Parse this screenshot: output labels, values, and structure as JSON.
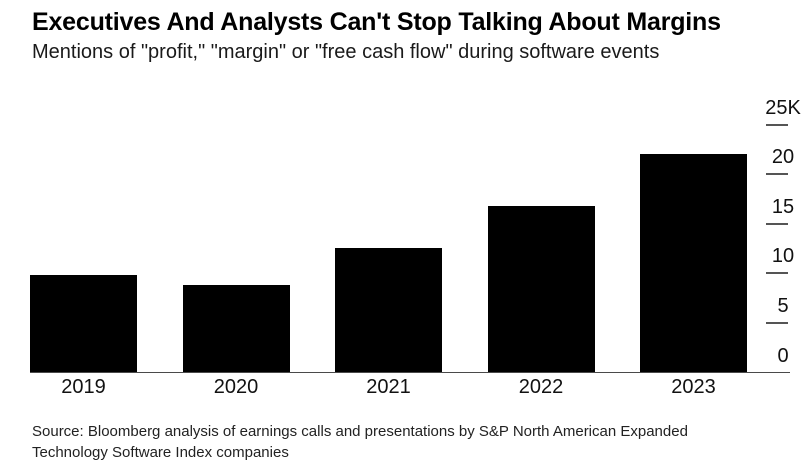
{
  "header": {
    "title": "Executives And Analysts Can't Stop Talking About Margins",
    "subtitle": "Mentions of \"profit,\" \"margin\" or \"free cash flow\" during software events"
  },
  "chart_data": {
    "type": "bar",
    "title": "Executives And Analysts Can't Stop Talking About Margins",
    "subtitle": "Mentions of \"profit,\" \"margin\" or \"free cash flow\" during software events",
    "categories": [
      "2019",
      "2020",
      "2021",
      "2022",
      "2023"
    ],
    "values": [
      9800,
      8800,
      12600,
      16800,
      22000
    ],
    "xlabel": "",
    "ylabel": "",
    "ylim": [
      0,
      25000
    ],
    "y_ticks": [
      {
        "value": 25000,
        "label": "25K"
      },
      {
        "value": 20000,
        "label": "20"
      },
      {
        "value": 15000,
        "label": "15"
      },
      {
        "value": 10000,
        "label": "10"
      },
      {
        "value": 5000,
        "label": "5"
      },
      {
        "value": 0,
        "label": "0"
      }
    ],
    "axis_side": "right",
    "grid": false,
    "legend": false,
    "bar_color": "#000000"
  },
  "footer": {
    "source_lines": [
      "Source: Bloomberg analysis of earnings calls and presentations by S&P North American Expanded",
      "Technology Software Index companies"
    ]
  },
  "colors": {
    "background": "#ffffff",
    "bar": "#000000",
    "text": "#111111",
    "axis_line": "#4a4a4a"
  }
}
